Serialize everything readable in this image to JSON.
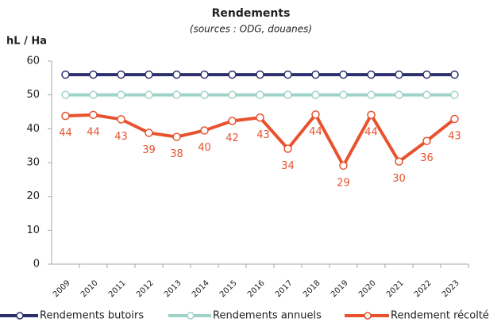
{
  "chart_data": {
    "type": "line",
    "title": "Rendements",
    "subtitle": "(sources : ODG, douanes)",
    "y_label": "hL / Ha",
    "categories": [
      "2009",
      "2010",
      "2011",
      "2012",
      "2013",
      "2014",
      "2015",
      "2016",
      "2017",
      "2018",
      "2019",
      "2020",
      "2021",
      "2022",
      "2023"
    ],
    "ylim": [
      0,
      60
    ],
    "yticks": [
      0,
      10,
      20,
      30,
      40,
      50,
      60
    ],
    "series": [
      {
        "name": "Rendements butoirs",
        "color": "#2b2f6b",
        "values": [
          56,
          56,
          56,
          56,
          56,
          56,
          56,
          56,
          56,
          56,
          56,
          56,
          56,
          56,
          56
        ]
      },
      {
        "name": "Rendements annuels",
        "color": "#9fd3c7",
        "values": [
          50,
          50,
          50,
          50,
          50,
          50,
          50,
          50,
          50,
          50,
          50,
          50,
          50,
          50,
          50
        ]
      },
      {
        "name": "Rendement récolté",
        "color": "#e8522e",
        "values": [
          43.8,
          44.1,
          42.8,
          38.8,
          37.6,
          39.5,
          42.3,
          43.3,
          34.1,
          44.2,
          29.1,
          44.1,
          30.3,
          36.4,
          42.9
        ],
        "value_labels": [
          "44",
          "44",
          "43",
          "39",
          "38",
          "40",
          "42",
          "43",
          "34",
          "44",
          "29",
          "44",
          "30",
          "36",
          "43"
        ]
      }
    ]
  }
}
